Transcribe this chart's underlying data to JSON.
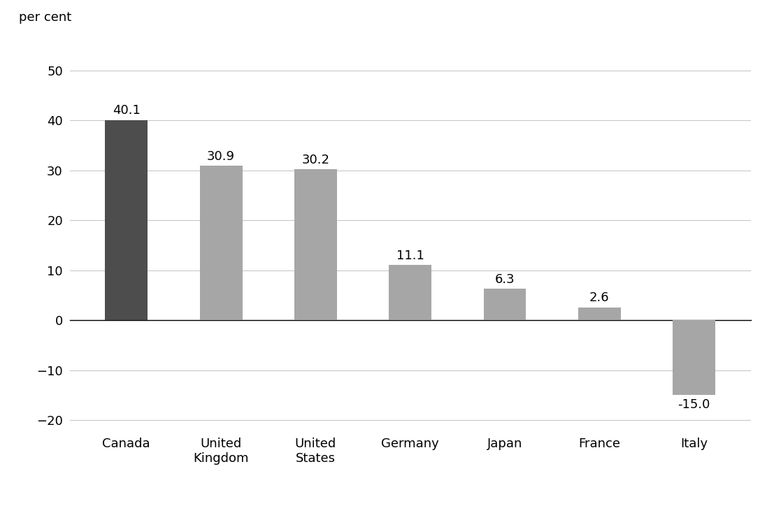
{
  "categories": [
    "Canada",
    "United\nKingdom",
    "United\nStates",
    "Germany",
    "Japan",
    "France",
    "Italy"
  ],
  "values": [
    40.1,
    30.9,
    30.2,
    11.1,
    6.3,
    2.6,
    -15.0
  ],
  "bar_colors": [
    "#4d4d4d",
    "#a6a6a6",
    "#a6a6a6",
    "#a6a6a6",
    "#a6a6a6",
    "#a6a6a6",
    "#a6a6a6"
  ],
  "ylabel": "per cent",
  "ylim": [
    -23,
    57
  ],
  "yticks": [
    -20,
    -10,
    0,
    10,
    20,
    30,
    40,
    50
  ],
  "grid_color": "#c8c8c8",
  "background_color": "#ffffff",
  "label_fontsize": 13,
  "tick_fontsize": 13,
  "ylabel_fontsize": 13,
  "bar_width": 0.45
}
